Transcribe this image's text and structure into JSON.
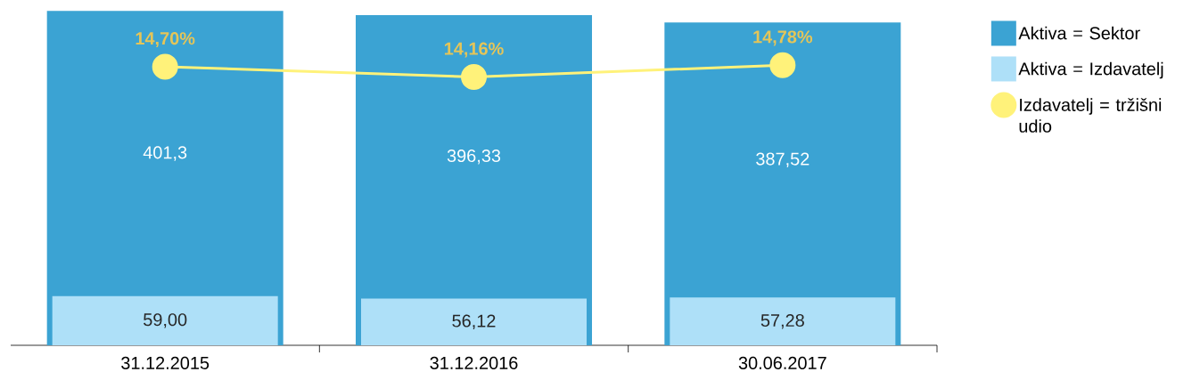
{
  "chart_data": {
    "type": "bar",
    "categories": [
      "31.12.2015",
      "31.12.2016",
      "30.06.2017"
    ],
    "series": [
      {
        "name": "Aktiva =  Sektor",
        "color": "#3ba3d3",
        "values": [
          401.3,
          396.33,
          387.52
        ],
        "value_labels": [
          "401,3",
          "396,33",
          "387,52"
        ]
      },
      {
        "name": "Aktiva = Izdavatelj",
        "color": "#aee0f8",
        "values": [
          59.0,
          56.12,
          57.28
        ],
        "value_labels": [
          "59,00",
          "56,12",
          "57,28"
        ]
      },
      {
        "name": "Izdavatelj = tržišni udio",
        "type": "line",
        "axis": "y2",
        "color": "#fff27a",
        "marker": "circle",
        "values": [
          14.7,
          14.16,
          14.78
        ],
        "value_labels": [
          "14,70%",
          "14,16%",
          "14,78%"
        ]
      }
    ],
    "tick_labels": "x",
    "legend": "right"
  }
}
